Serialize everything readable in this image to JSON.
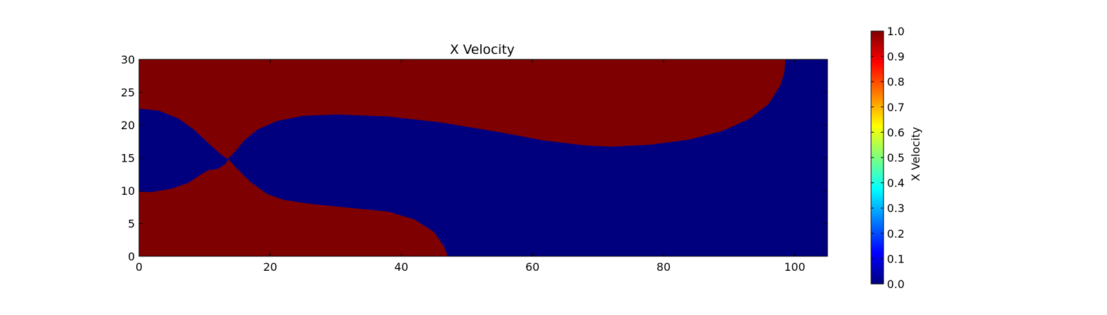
{
  "chart_data": {
    "type": "heatmap",
    "title": "X Velocity",
    "xlabel": "",
    "ylabel": "",
    "xlim": [
      0,
      105
    ],
    "ylim": [
      0,
      30
    ],
    "xticks": [
      0,
      20,
      40,
      60,
      80,
      100
    ],
    "yticks": [
      0,
      5,
      10,
      15,
      20,
      25,
      30
    ],
    "colormap": "jet",
    "background_color": "#00007f",
    "region_color": "#7f0000",
    "regions": [
      {
        "value": 1.0,
        "points": [
          [
            0,
            30
          ],
          [
            0,
            22.5
          ],
          [
            3,
            22.2
          ],
          [
            6,
            21
          ],
          [
            8.5,
            19.2
          ],
          [
            10.5,
            17.3
          ],
          [
            12.5,
            15.5
          ],
          [
            13.5,
            14.8
          ],
          [
            14.5,
            15.8
          ],
          [
            16,
            17.6
          ],
          [
            18,
            19.3
          ],
          [
            21,
            20.6
          ],
          [
            25,
            21.4
          ],
          [
            30,
            21.6
          ],
          [
            38,
            21.3
          ],
          [
            46,
            20.4
          ],
          [
            55,
            18.9
          ],
          [
            62,
            17.6
          ],
          [
            68,
            16.9
          ],
          [
            72,
            16.7
          ],
          [
            78,
            17
          ],
          [
            84,
            17.8
          ],
          [
            89,
            19.1
          ],
          [
            93,
            20.9
          ],
          [
            96,
            23.2
          ],
          [
            97.8,
            26
          ],
          [
            98.4,
            28
          ],
          [
            98.6,
            30
          ]
        ]
      },
      {
        "value": 1.0,
        "points": [
          [
            0,
            0
          ],
          [
            0,
            9.8
          ],
          [
            2,
            9.8
          ],
          [
            5,
            10.3
          ],
          [
            7.5,
            11.2
          ],
          [
            9.5,
            12.5
          ],
          [
            10.5,
            13.1
          ],
          [
            12,
            13.3
          ],
          [
            13.2,
            14.1
          ],
          [
            13.6,
            14.8
          ],
          [
            15,
            13.3
          ],
          [
            17,
            11.3
          ],
          [
            19.5,
            9.5
          ],
          [
            22,
            8.6
          ],
          [
            26,
            8
          ],
          [
            32,
            7.4
          ],
          [
            38,
            6.8
          ],
          [
            42,
            5.6
          ],
          [
            45,
            3.7
          ],
          [
            46.5,
            1.5
          ],
          [
            47.1,
            0
          ]
        ]
      }
    ],
    "colorbar": {
      "label": "X Velocity",
      "min": 0.0,
      "max": 1.0,
      "ticks": [
        "0.0",
        "0.1",
        "0.2",
        "0.3",
        "0.4",
        "0.5",
        "0.6",
        "0.7",
        "0.8",
        "0.9",
        "1.0"
      ],
      "stops": [
        "#00007f",
        "#0000ff",
        "#007fff",
        "#00ffff",
        "#7fff7f",
        "#ffff00",
        "#ff7f00",
        "#ff0000",
        "#7f0000"
      ]
    }
  }
}
